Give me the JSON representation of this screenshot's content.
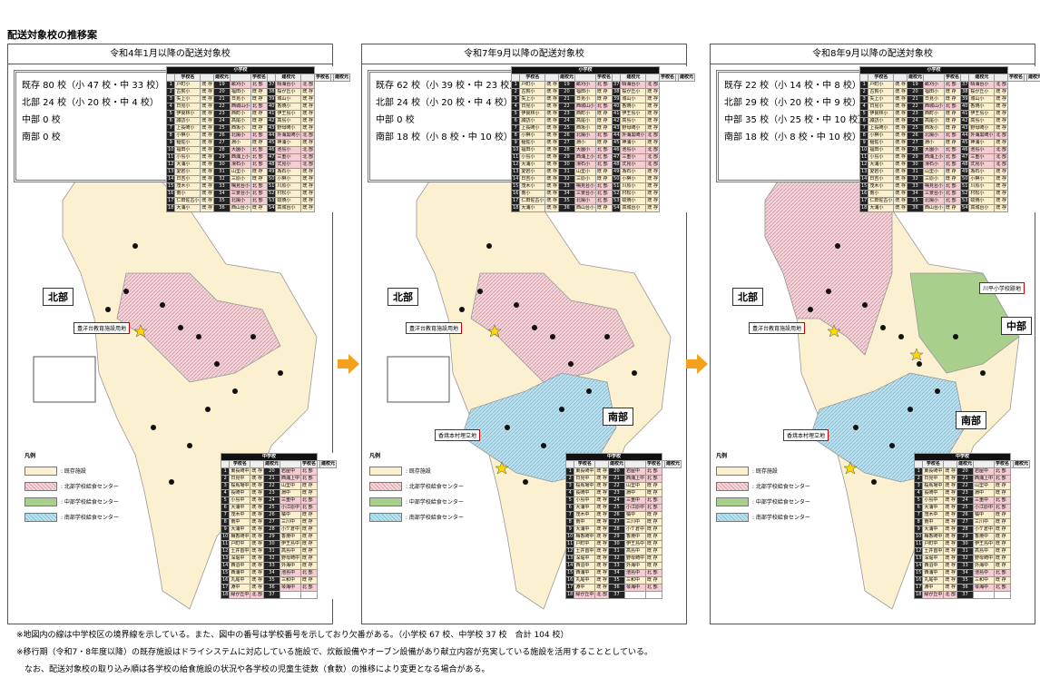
{
  "page_title": "配送対象校の推移案",
  "panels": [
    {
      "title": "令和4年1月以降の配送対象校",
      "summary": [
        "既存 80 校（小 47 校・中 33 校）",
        "北部 24 校（小 20 校・中 4 校）",
        "中部 0 校",
        "南部 0 校"
      ],
      "labels": {
        "north": "北部",
        "site1": "豊洋台教育施設用地"
      }
    },
    {
      "title": "令和7年9月以降の配送対象校",
      "summary": [
        "既存 62 校（小 39 校・中 23 校）",
        "北部 24 校（小 20 校・中 4 校）",
        "中部 0 校",
        "南部 18 校（小 8 校・中 10 校）"
      ],
      "labels": {
        "north": "北部",
        "south": "南部",
        "site1": "豊洋台教育施設用地",
        "site2": "香焼本村埋立地"
      }
    },
    {
      "title": "令和8年9月以降の配送対象校",
      "summary": [
        "既存 22 校（小 14 校・中 8 校）",
        "北部 29 校（小 20 校・中 9 校）",
        "中部 35 校（小 25 校・中 10 校）",
        "南部 18 校（小 8 校・中 10 校）"
      ],
      "labels": {
        "north": "北部",
        "south": "南部",
        "central": "中部",
        "site1": "豊洋台教育施設用地",
        "site2": "香焼本村埋立地",
        "site3": "川平小学校跡地"
      }
    }
  ],
  "legend": {
    "title": "凡例",
    "items": [
      ": 既存施設",
      ": 北部学校給食センター",
      ": 中部学校給食センター",
      ": 南部学校給食センター"
    ]
  },
  "elem_table": {
    "group": "小学校",
    "headers": [
      "学校名",
      "建校元",
      "学校名",
      "建校元",
      "学校名",
      "建校元"
    ],
    "rows": [
      [
        "1",
        "戸町小",
        "既 存",
        "19",
        "畝刈小",
        "北 部",
        "37",
        "晴海台小",
        "北 部"
      ],
      [
        "2",
        "古賀小",
        "既 存",
        "20",
        "福田小",
        "既 存",
        "38",
        "桜が丘小",
        "既 存"
      ],
      [
        "3",
        "矢上小",
        "既 存",
        "21",
        "日見小",
        "既 存",
        "39",
        "城山小",
        "既 存"
      ],
      [
        "4",
        "日見小",
        "既 存",
        "22",
        "西城山小",
        "北 部",
        "40",
        "香焼小",
        "既 存"
      ],
      [
        "5",
        "伊良林小",
        "既 存",
        "23",
        "西町小",
        "既 存",
        "41",
        "伊王島小",
        "既 存"
      ],
      [
        "6",
        "諏訪小",
        "既 存",
        "24",
        "高尾小",
        "既 存",
        "42",
        "高島小",
        "既 存"
      ],
      [
        "7",
        "上長崎小",
        "既 存",
        "25",
        "西坂小",
        "既 存",
        "43",
        "野母崎小",
        "既 存"
      ],
      [
        "8",
        "小榊小",
        "既 存",
        "26",
        "北陽小",
        "北 部",
        "44",
        "外海黒崎小",
        "北 部"
      ],
      [
        "9",
        "稲佐小",
        "既 存",
        "27",
        "淵小",
        "既 存",
        "45",
        "神浦小",
        "既 存"
      ],
      [
        "10",
        "福田小",
        "既 存",
        "28",
        "大園小",
        "北 部",
        "46",
        "池島小",
        "北 部"
      ],
      [
        "11",
        "小島小",
        "既 存",
        "29",
        "西浦上小",
        "北 部",
        "47",
        "三重小",
        "北 部"
      ],
      [
        "12",
        "大浦小",
        "既 存",
        "30",
        "滑石小",
        "北 部",
        "48",
        "式見小",
        "北 部"
      ],
      [
        "13",
        "愛宕小",
        "既 存",
        "31",
        "山里小",
        "既 存",
        "49",
        "為石小",
        "既 存"
      ],
      [
        "14",
        "日吉小",
        "既 存",
        "32",
        "三原小",
        "既 存",
        "50",
        "小榊小",
        "既 存"
      ],
      [
        "15",
        "茂木小",
        "既 存",
        "33",
        "鳴見台小",
        "北 部",
        "51",
        "川原小",
        "既 存"
      ],
      [
        "16",
        "南小",
        "既 存",
        "34",
        "三景台小",
        "北 部",
        "52",
        "村松小",
        "既 存"
      ],
      [
        "17",
        "仁田佐古小",
        "既 存",
        "35",
        "北陽小",
        "北 部",
        "53",
        "蚊焼小",
        "既 存"
      ],
      [
        "18",
        "大浦小",
        "既 存",
        "36",
        "西山台小",
        "既 存",
        "54",
        "高城台小",
        "既 存"
      ]
    ]
  },
  "junior_table": {
    "group": "中学校",
    "headers": [
      "学校名",
      "建校元",
      "学校名",
      "建校元"
    ],
    "rows": [
      [
        "1",
        "東長崎中",
        "既 存",
        "20",
        "岩屋中",
        "北 部"
      ],
      [
        "2",
        "日見中",
        "既 存",
        "21",
        "西浦上中",
        "北 部"
      ],
      [
        "3",
        "桜馬場中",
        "既 存",
        "22",
        "山里中",
        "既 存"
      ],
      [
        "4",
        "長崎中",
        "既 存",
        "23",
        "淵中",
        "既 存"
      ],
      [
        "5",
        "小島中",
        "既 存",
        "24",
        "三重中",
        "北 部"
      ],
      [
        "6",
        "大浦中",
        "既 存",
        "25",
        "小江原中",
        "北 部"
      ],
      [
        "7",
        "茂木中",
        "既 存",
        "26",
        "橘中",
        "既 存"
      ],
      [
        "8",
        "南中",
        "既 存",
        "27",
        "三川中",
        "既 存"
      ],
      [
        "9",
        "大浦中",
        "既 存",
        "28",
        "小ケ倉中",
        "既 存"
      ],
      [
        "10",
        "梅香崎中",
        "既 存",
        "29",
        "香焼中",
        "既 存"
      ],
      [
        "11",
        "戸町中",
        "既 存",
        "30",
        "伊王島中",
        "既 存"
      ],
      [
        "12",
        "土井首中",
        "既 存",
        "31",
        "高島中",
        "既 存"
      ],
      [
        "13",
        "深堀中",
        "既 存",
        "32",
        "野母崎中",
        "既 存"
      ],
      [
        "14",
        "西泊中",
        "既 存",
        "33",
        "外海中",
        "既 存"
      ],
      [
        "15",
        "西浦中",
        "既 存",
        "34",
        "池島中",
        "北 部"
      ],
      [
        "16",
        "丸尾中",
        "既 存",
        "35",
        "三和中",
        "既 存"
      ],
      [
        "17",
        "淵中",
        "既 存",
        "36",
        "琴海中",
        "北 部"
      ],
      [
        "18",
        "緑が丘中",
        "北 部",
        "37",
        "",
        ""
      ]
    ]
  },
  "footnotes": [
    "※地図内の線は中学校区の境界線を示している。また、図中の番号は学校番号を示しており欠番がある。（小学校 67 校、中学校 37 校　合計 104 校）",
    "※移行期（令和7・8年度以降）の既存施設はドライシステムに対応している施設で、炊飯設備やオーブン設備があり献立内容が充実している施設を活用することとしている。",
    "　なお、配送対象校の取り込み順は各学校の給食施設の状況や各学校の児童生徒数（食数）の推移により変更となる場合がある。"
  ],
  "colors": {
    "existing": "#fbf0cf",
    "north": "#f4cdd2",
    "central": "#a9cf8c",
    "south": "#bfe2ef",
    "arrow": "#f4a21e"
  }
}
